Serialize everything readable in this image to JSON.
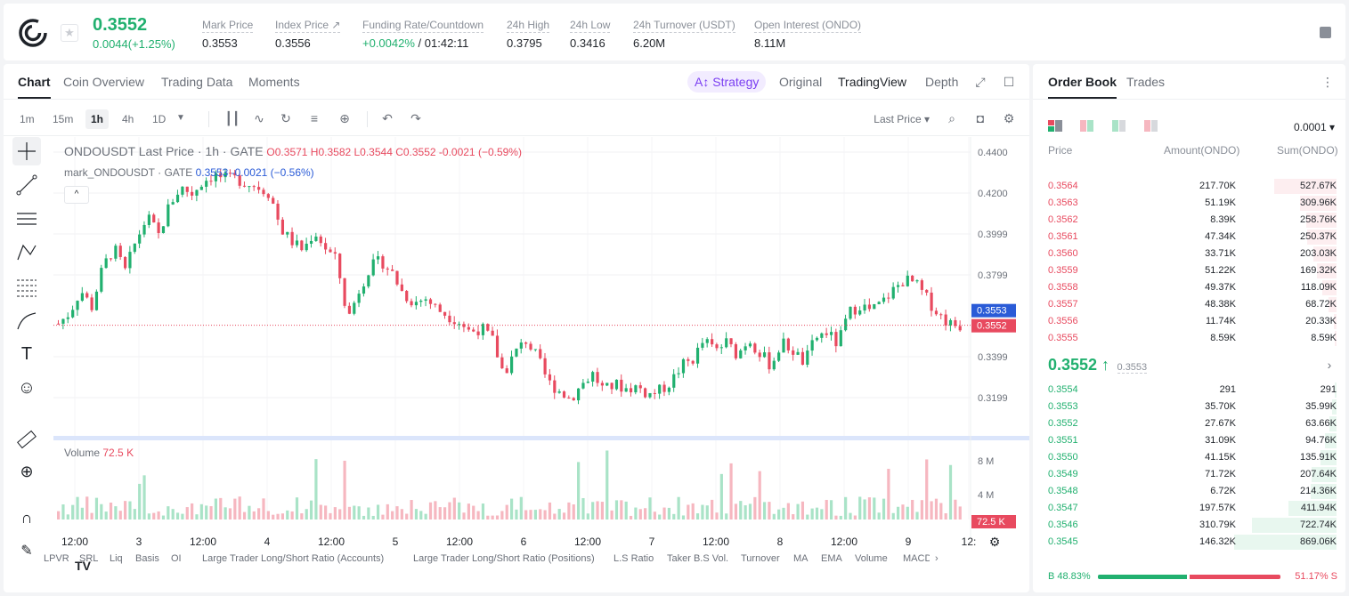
{
  "header": {
    "last_price": "0.3552",
    "change": "0.0044(+1.25%)",
    "stats": [
      {
        "label": "Mark Price",
        "value": "0.3553"
      },
      {
        "label": "Index Price ↗",
        "value": "0.3556"
      },
      {
        "label": "Funding Rate/Countdown",
        "value_green": "+0.0042%",
        "value": "/ 01:42:11"
      },
      {
        "label": "24h High",
        "value": "0.3795"
      },
      {
        "label": "24h Low",
        "value": "0.3416"
      },
      {
        "label": "24h Turnover (USDT)",
        "value": "6.20M"
      },
      {
        "label": "Open Interest (ONDO)",
        "value": "8.11M"
      }
    ]
  },
  "chart_tabs": [
    "Chart",
    "Coin Overview",
    "Trading Data",
    "Moments"
  ],
  "strategy_label": "Strategy",
  "views": [
    "Original",
    "TradingView",
    "Depth"
  ],
  "intervals": [
    "1m",
    "15m",
    "1h",
    "4h",
    "1D"
  ],
  "price_type": "Last Price",
  "legend": {
    "main": "ONDOUSDT Last Price · 1h · GATE",
    "ohlc": "O0.3571  H0.3582  L0.3544  C0.3552  -0.0021 (−0.59%)",
    "mark_name": "mark_ONDOUSDT · GATE",
    "mark_vals": "0.3553  -0.0021 (−0.56%)",
    "collapse": "^"
  },
  "volume": {
    "label": "Volume",
    "value": "72.5 K"
  },
  "tv_logo": "TV",
  "indicators": [
    "LPVR",
    "SRL",
    "Liq",
    "Basis",
    "OI",
    "Large Trader Long/Short Ratio (Accounts)",
    "Large Trader Long/Short Ratio (Positions)",
    "L.S Ratio",
    "Taker B.S Vol.",
    "Turnover",
    "MA",
    "EMA",
    "Volume",
    "MACD"
  ],
  "chart_data": {
    "type": "candlestick",
    "price_axis": [
      "0.4400",
      "0.4200",
      "0.3999",
      "0.3799",
      "0.3399",
      "0.3199"
    ],
    "volume_axis": [
      "8 M",
      "4 M"
    ],
    "x_ticks": [
      "12:00",
      "3",
      "12:00",
      "4",
      "12:00",
      "5",
      "12:00",
      "6",
      "12:00",
      "7",
      "12:00",
      "8",
      "12:00",
      "9",
      "12:"
    ],
    "mark_price_tag": "0.3553",
    "last_price_tag": "0.3552",
    "volume_tag": "72.5 K",
    "ylim": [
      0.305,
      0.445
    ],
    "close_path": [
      0.356,
      0.361,
      0.372,
      0.364,
      0.383,
      0.392,
      0.381,
      0.396,
      0.407,
      0.398,
      0.413,
      0.421,
      0.418,
      0.424,
      0.427,
      0.425,
      0.425,
      0.423,
      0.421,
      0.418,
      0.401,
      0.395,
      0.391,
      0.4,
      0.392,
      0.386,
      0.358,
      0.372,
      0.383,
      0.386,
      0.38,
      0.37,
      0.366,
      0.368,
      0.363,
      0.36,
      0.357,
      0.352,
      0.354,
      0.348,
      0.332,
      0.342,
      0.348,
      0.34,
      0.328,
      0.324,
      0.32,
      0.327,
      0.332,
      0.324,
      0.327,
      0.325,
      0.326,
      0.322,
      0.324,
      0.328,
      0.336,
      0.339,
      0.348,
      0.343,
      0.347,
      0.341,
      0.349,
      0.342,
      0.336,
      0.347,
      0.343,
      0.337,
      0.349,
      0.352,
      0.346,
      0.361,
      0.365,
      0.362,
      0.366,
      0.372,
      0.377,
      0.375,
      0.368,
      0.361,
      0.356,
      0.355
    ]
  },
  "orderbook": {
    "tabs": [
      "Order Book",
      "Trades"
    ],
    "precision": "0.0001",
    "headers": {
      "price": "Price",
      "amount": "Amount(ONDO)",
      "sum": "Sum(ONDO)"
    },
    "asks": [
      {
        "price": "0.3564",
        "amount": "217.70K",
        "sum": "527.67K",
        "depth": 0.61
      },
      {
        "price": "0.3563",
        "amount": "51.19K",
        "sum": "309.96K",
        "depth": 0.36
      },
      {
        "price": "0.3562",
        "amount": "8.39K",
        "sum": "258.76K",
        "depth": 0.3
      },
      {
        "price": "0.3561",
        "amount": "47.34K",
        "sum": "250.37K",
        "depth": 0.29
      },
      {
        "price": "0.3560",
        "amount": "33.71K",
        "sum": "203.03K",
        "depth": 0.23
      },
      {
        "price": "0.3559",
        "amount": "51.22K",
        "sum": "169.32K",
        "depth": 0.19
      },
      {
        "price": "0.3558",
        "amount": "49.37K",
        "sum": "118.09K",
        "depth": 0.14
      },
      {
        "price": "0.3557",
        "amount": "48.38K",
        "sum": "68.72K",
        "depth": 0.08
      },
      {
        "price": "0.3556",
        "amount": "11.74K",
        "sum": "20.33K",
        "depth": 0.03
      },
      {
        "price": "0.3555",
        "amount": "8.59K",
        "sum": "8.59K",
        "depth": 0.01
      }
    ],
    "mid_price": "0.3552 ↑",
    "mid_mark": "0.3553",
    "bids": [
      {
        "price": "0.3554",
        "amount": "291",
        "sum": "291",
        "depth": 0.003
      },
      {
        "price": "0.3553",
        "amount": "35.70K",
        "sum": "35.99K",
        "depth": 0.04
      },
      {
        "price": "0.3552",
        "amount": "27.67K",
        "sum": "63.66K",
        "depth": 0.07
      },
      {
        "price": "0.3551",
        "amount": "31.09K",
        "sum": "94.76K",
        "depth": 0.11
      },
      {
        "price": "0.3550",
        "amount": "41.15K",
        "sum": "135.91K",
        "depth": 0.16
      },
      {
        "price": "0.3549",
        "amount": "71.72K",
        "sum": "207.64K",
        "depth": 0.24
      },
      {
        "price": "0.3548",
        "amount": "6.72K",
        "sum": "214.36K",
        "depth": 0.25
      },
      {
        "price": "0.3547",
        "amount": "197.57K",
        "sum": "411.94K",
        "depth": 0.47
      },
      {
        "price": "0.3546",
        "amount": "310.79K",
        "sum": "722.74K",
        "depth": 0.83
      },
      {
        "price": "0.3545",
        "amount": "146.32K",
        "sum": "869.06K",
        "depth": 1.0
      }
    ],
    "buy_ratio": "B 48.83%",
    "sell_ratio": "51.17% S",
    "buy_fraction": 0.4883
  },
  "colors": {
    "up": "#21b06f",
    "down": "#e84a5f",
    "accent": "#7b3ff2"
  }
}
